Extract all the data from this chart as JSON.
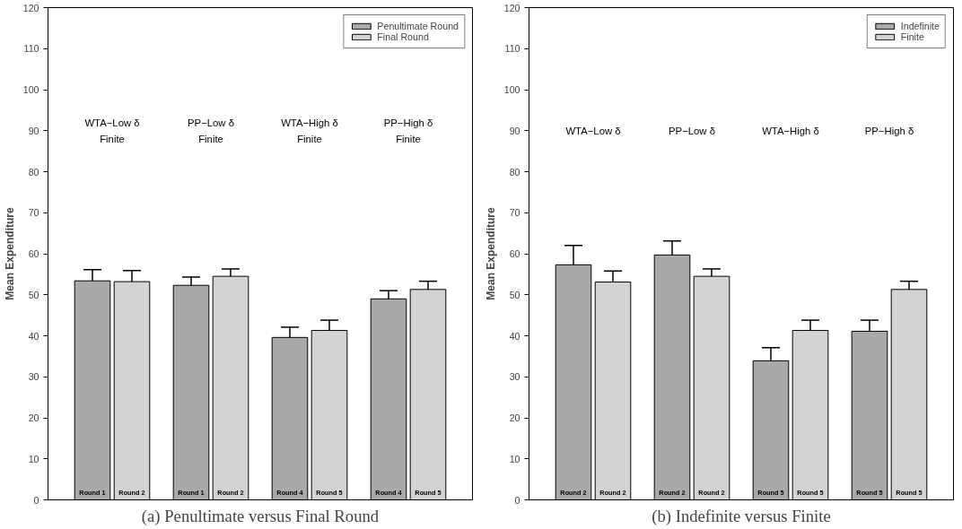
{
  "chart_data": [
    {
      "type": "bar",
      "title": "(a) Penultimate versus Final Round",
      "ylabel": "Mean Expenditure",
      "categories": [
        "WTA−Low δ\nFinite",
        "PP−Low δ\nFinite",
        "WTA−High δ\nFinite",
        "PP−High δ\nFinite"
      ],
      "series": [
        {
          "name": "Penultimate Round",
          "color": "#a9a9a9",
          "values": [
            53.4,
            52.3,
            39.6,
            49.0
          ],
          "errors": [
            2.7,
            2.0,
            2.5,
            2.0
          ]
        },
        {
          "name": "Final Round",
          "color": "#d3d3d3",
          "values": [
            53.2,
            54.5,
            41.3,
            51.3
          ],
          "errors": [
            2.7,
            1.8,
            2.5,
            2.0
          ]
        }
      ],
      "ylim": [
        0,
        120
      ],
      "yticks": [
        0,
        10,
        20,
        30,
        40,
        50,
        60,
        70,
        80,
        90,
        100,
        110,
        120
      ],
      "legend": "top right",
      "annotations": [
        "Round 1",
        "Round 1",
        "Round 4",
        "Round 4",
        "Round 2",
        "Round 2",
        "Round 5",
        "Round 5"
      ]
    },
    {
      "type": "bar",
      "title": "(b) Indefinite versus Finite",
      "ylabel": "Mean Expenditure",
      "categories": [
        "WTA−Low δ",
        "PP−Low δ",
        "WTA−High δ",
        "PP−High δ"
      ],
      "series": [
        {
          "name": "Indefinite",
          "color": "#a9a9a9",
          "values": [
            57.3,
            59.7,
            33.9,
            41.1
          ],
          "errors": [
            4.7,
            3.4,
            3.2,
            2.7
          ]
        },
        {
          "name": "Finite",
          "color": "#d3d3d3",
          "values": [
            53.1,
            54.5,
            41.3,
            51.3
          ],
          "errors": [
            2.7,
            1.8,
            2.5,
            2.0
          ]
        }
      ],
      "ylim": [
        0,
        120
      ],
      "yticks": [
        0,
        10,
        20,
        30,
        40,
        50,
        60,
        70,
        80,
        90,
        100,
        110,
        120
      ],
      "legend": "top right",
      "annotations": [
        "Round 2",
        "Round 2",
        "Round 5",
        "Round 5",
        "Round 2",
        "Round 2",
        "Round 5",
        "Round 5"
      ]
    }
  ]
}
